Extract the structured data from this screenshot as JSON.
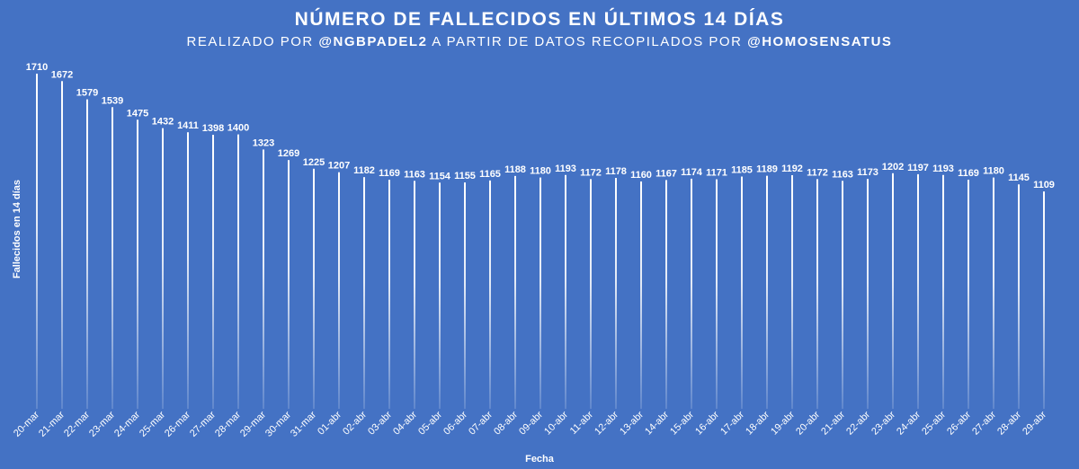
{
  "title": "NÚMERO DE FALLECIDOS EN ÚLTIMOS 14 DÍAS",
  "subtitle": {
    "part1": "REALIZADO POR ",
    "author": "@NGBPADEL2",
    "part2": " A PARTIR DE DATOS RECOPILADOS POR ",
    "source": "@HOMOSENSATUS"
  },
  "colors": {
    "background": "#4472c4",
    "bar": "#ffffff",
    "text": "#ffffff"
  },
  "chart_data": {
    "type": "bar",
    "title": "NÚMERO DE FALLECIDOS EN ÚLTIMOS 14 DÍAS",
    "xlabel": "Fecha",
    "ylabel": "Fallecidos en 14 días",
    "ylim": [
      0,
      1710
    ],
    "grid": false,
    "legend": "none",
    "categories": [
      "20-mar",
      "21-mar",
      "22-mar",
      "23-mar",
      "24-mar",
      "25-mar",
      "26-mar",
      "27-mar",
      "28-mar",
      "29-mar",
      "30-mar",
      "31-mar",
      "01-abr",
      "02-abr",
      "03-abr",
      "04-abr",
      "05-abr",
      "06-abr",
      "07-abr",
      "08-abr",
      "09-abr",
      "10-abr",
      "11-abr",
      "12-abr",
      "13-abr",
      "14-abr",
      "15-abr",
      "16-abr",
      "17-abr",
      "18-abr",
      "19-abr",
      "20-abr",
      "21-abr",
      "22-abr",
      "23-abr",
      "24-abr",
      "25-abr",
      "26-abr",
      "27-abr",
      "28-abr",
      "29-abr"
    ],
    "values": [
      1710,
      1672,
      1579,
      1539,
      1475,
      1432,
      1411,
      1398,
      1400,
      1323,
      1269,
      1225,
      1207,
      1182,
      1169,
      1163,
      1154,
      1155,
      1165,
      1188,
      1180,
      1193,
      1172,
      1178,
      1160,
      1167,
      1174,
      1171,
      1185,
      1189,
      1192,
      1172,
      1163,
      1173,
      1202,
      1197,
      1193,
      1169,
      1180,
      1145,
      1109
    ]
  }
}
